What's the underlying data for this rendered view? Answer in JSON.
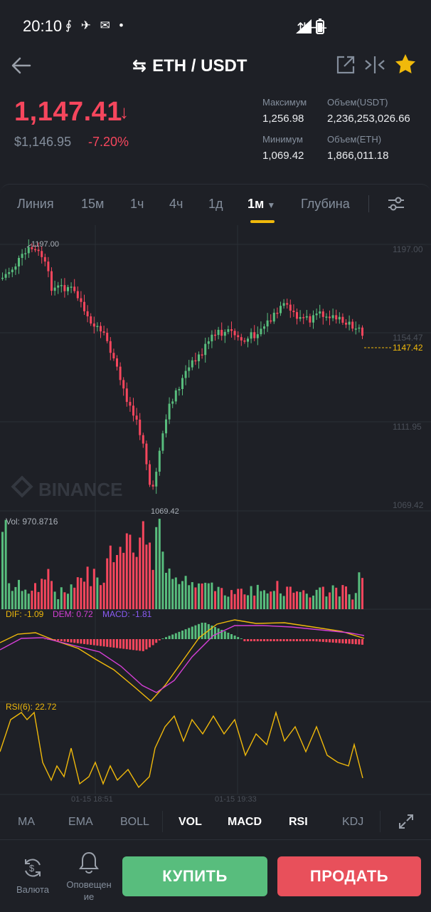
{
  "status_bar": {
    "time": "20:10",
    "network": "H+"
  },
  "header": {
    "pair": "ETH / USDT"
  },
  "ticker": {
    "price": "1,147.41",
    "usd_price": "$1,146.95",
    "change": "-7.20%",
    "high_label": "Максимум",
    "high": "1,256.98",
    "low_label": "Минимум",
    "low": "1,069.42",
    "vol_usdt_label": "Объем(USDT)",
    "vol_usdt": "2,236,253,026.66",
    "vol_eth_label": "Объем(ETH)",
    "vol_eth": "1,866,011.18"
  },
  "timeframes": [
    "Линия",
    "15м",
    "1ч",
    "4ч",
    "1д",
    "1м",
    "Глубина"
  ],
  "active_timeframe": "1м",
  "chart": {
    "watermark": "BINANCE",
    "price_axis": [
      "1197.00",
      "1154.47",
      "1111.95",
      "1069.42"
    ],
    "current_price_tag": "1147.42",
    "high_marker": "1197.00",
    "low_marker": "1069.42",
    "vol_label": "Vol: 970.8716",
    "dif_label": "DIF: -1.09",
    "dem_label": "DEM: 0.72",
    "macd_label": "MACD: -1.81",
    "rsi_label": "RSI(6): 22.72",
    "time_labels": [
      "01-15 18:51",
      "01-15 19:33"
    ]
  },
  "chart_data": {
    "type": "candlestick",
    "ylim": [
      1069.42,
      1197.0
    ],
    "current": 1147.42
  },
  "indicators": [
    "MA",
    "EMA",
    "BOLL",
    "VOL",
    "MACD",
    "RSI",
    "KDJ"
  ],
  "active_indicators": [
    "VOL",
    "MACD",
    "RSI"
  ],
  "bottom_nav": {
    "currency_label": "Валюта",
    "alerts_label_1": "Оповещен",
    "alerts_label_2": "ие",
    "buy_label": "КУПИТЬ",
    "sell_label": "ПРОДАТЬ"
  },
  "colors": {
    "up": "#58bd7d",
    "down": "#f6465d",
    "accent": "#f0b90b",
    "bg": "#1e2026"
  }
}
